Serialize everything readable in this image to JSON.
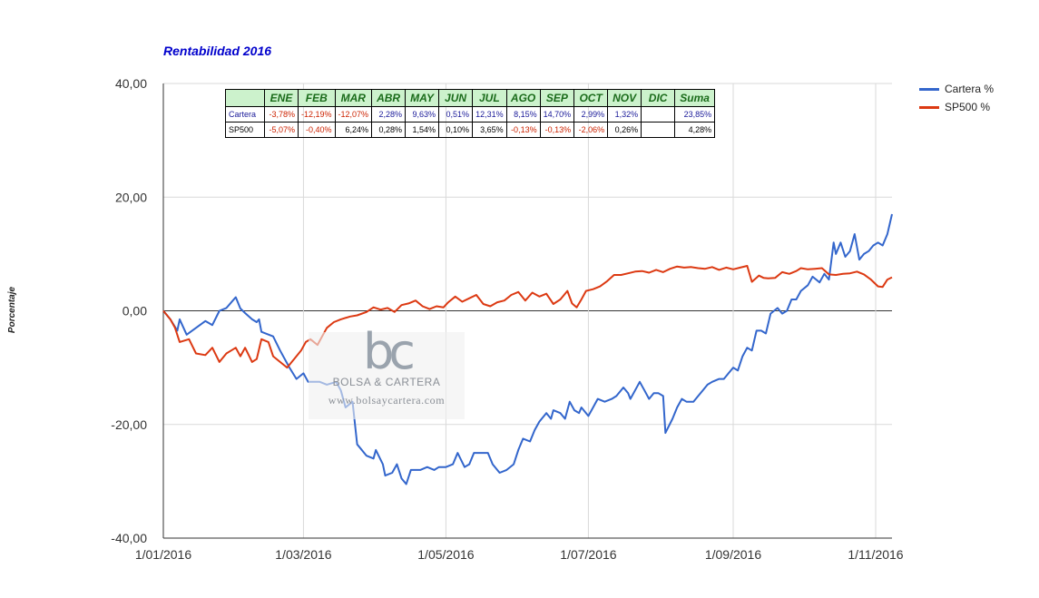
{
  "chart_data": {
    "type": "line",
    "title": "Rentabilidad 2016",
    "ylabel": "Porcentaje",
    "xlabel": "",
    "xlim": [
      "2016-01-01",
      "2016-11-08"
    ],
    "ylim": [
      -40,
      40
    ],
    "yticks": [
      -40,
      -20,
      0,
      20,
      40
    ],
    "ytick_labels": [
      "-40,00",
      "-20,00",
      "0,00",
      "20,00",
      "40,00"
    ],
    "xticks": [
      "2016-01-01",
      "2016-03-01",
      "2016-05-01",
      "2016-07-01",
      "2016-09-01",
      "2016-11-01"
    ],
    "xtick_labels": [
      "1/01/2016",
      "1/03/2016",
      "1/05/2016",
      "1/07/2016",
      "1/09/2016",
      "1/11/2016"
    ],
    "grid": true,
    "legend_position": "right",
    "series": [
      {
        "name": "Cartera %",
        "color": "#3366cc",
        "points": [
          [
            "2016-01-01",
            0
          ],
          [
            "2016-01-04",
            -1.5
          ],
          [
            "2016-01-07",
            -3.5
          ],
          [
            "2016-01-08",
            -1.5
          ],
          [
            "2016-01-11",
            -4.2
          ],
          [
            "2016-01-15",
            -3
          ],
          [
            "2016-01-19",
            -1.8
          ],
          [
            "2016-01-22",
            -2.5
          ],
          [
            "2016-01-25",
            0
          ],
          [
            "2016-01-28",
            0.5
          ],
          [
            "2016-02-01",
            2.4
          ],
          [
            "2016-02-03",
            0.4
          ],
          [
            "2016-02-05",
            -0.4
          ],
          [
            "2016-02-08",
            -1.5
          ],
          [
            "2016-02-10",
            -2
          ],
          [
            "2016-02-11",
            -1.5
          ],
          [
            "2016-02-12",
            -3.7
          ],
          [
            "2016-02-17",
            -4.5
          ],
          [
            "2016-02-20",
            -7
          ],
          [
            "2016-02-24",
            -10
          ],
          [
            "2016-02-27",
            -12
          ],
          [
            "2016-03-01",
            -11
          ],
          [
            "2016-03-03",
            -12.5
          ],
          [
            "2016-03-08",
            -12.5
          ],
          [
            "2016-03-11",
            -13
          ],
          [
            "2016-03-15",
            -12.5
          ],
          [
            "2016-03-17",
            -14
          ],
          [
            "2016-03-19",
            -17
          ],
          [
            "2016-03-22",
            -16
          ],
          [
            "2016-03-24",
            -23.5
          ],
          [
            "2016-03-25",
            -24
          ],
          [
            "2016-03-28",
            -25.5
          ],
          [
            "2016-03-31",
            -26
          ],
          [
            "2016-04-01",
            -24.5
          ],
          [
            "2016-04-04",
            -27
          ],
          [
            "2016-04-05",
            -29
          ],
          [
            "2016-04-08",
            -28.5
          ],
          [
            "2016-04-10",
            -27
          ],
          [
            "2016-04-12",
            -29.5
          ],
          [
            "2016-04-14",
            -30.5
          ],
          [
            "2016-04-16",
            -28
          ],
          [
            "2016-04-20",
            -28
          ],
          [
            "2016-04-23",
            -27.5
          ],
          [
            "2016-04-26",
            -28
          ],
          [
            "2016-04-28",
            -27.5
          ],
          [
            "2016-05-01",
            -27.5
          ],
          [
            "2016-05-04",
            -27
          ],
          [
            "2016-05-06",
            -25
          ],
          [
            "2016-05-09",
            -27.5
          ],
          [
            "2016-05-11",
            -27
          ],
          [
            "2016-05-13",
            -25
          ],
          [
            "2016-05-19",
            -25
          ],
          [
            "2016-05-21",
            -27
          ],
          [
            "2016-05-24",
            -28.5
          ],
          [
            "2016-05-27",
            -28
          ],
          [
            "2016-05-30",
            -27
          ],
          [
            "2016-06-01",
            -24.5
          ],
          [
            "2016-06-03",
            -22.5
          ],
          [
            "2016-06-06",
            -23
          ],
          [
            "2016-06-08",
            -21
          ],
          [
            "2016-06-10",
            -19.5
          ],
          [
            "2016-06-13",
            -18
          ],
          [
            "2016-06-15",
            -19
          ],
          [
            "2016-06-16",
            -17.5
          ],
          [
            "2016-06-19",
            -18
          ],
          [
            "2016-06-21",
            -19
          ],
          [
            "2016-06-23",
            -16
          ],
          [
            "2016-06-25",
            -17.5
          ],
          [
            "2016-06-27",
            -18
          ],
          [
            "2016-06-28",
            -17
          ],
          [
            "2016-07-01",
            -18.5
          ],
          [
            "2016-07-03",
            -17
          ],
          [
            "2016-07-05",
            -15.5
          ],
          [
            "2016-07-08",
            -16
          ],
          [
            "2016-07-11",
            -15.5
          ],
          [
            "2016-07-13",
            -15
          ],
          [
            "2016-07-16",
            -13.5
          ],
          [
            "2016-07-18",
            -14.5
          ],
          [
            "2016-07-19",
            -15.5
          ],
          [
            "2016-07-21",
            -14
          ],
          [
            "2016-07-23",
            -12.5
          ],
          [
            "2016-07-25",
            -14
          ],
          [
            "2016-07-27",
            -15.5
          ],
          [
            "2016-07-29",
            -14.5
          ],
          [
            "2016-07-31",
            -14.5
          ],
          [
            "2016-08-02",
            -15
          ],
          [
            "2016-08-03",
            -21.5
          ],
          [
            "2016-08-06",
            -19
          ],
          [
            "2016-08-08",
            -17
          ],
          [
            "2016-08-10",
            -15.5
          ],
          [
            "2016-08-12",
            -16
          ],
          [
            "2016-08-15",
            -16
          ],
          [
            "2016-08-17",
            -15
          ],
          [
            "2016-08-19",
            -14
          ],
          [
            "2016-08-21",
            -13
          ],
          [
            "2016-08-23",
            -12.5
          ],
          [
            "2016-08-26",
            -12
          ],
          [
            "2016-08-28",
            -12
          ],
          [
            "2016-08-30",
            -11
          ],
          [
            "2016-09-01",
            -10
          ],
          [
            "2016-09-03",
            -10.5
          ],
          [
            "2016-09-05",
            -8
          ],
          [
            "2016-09-07",
            -6.5
          ],
          [
            "2016-09-09",
            -7
          ],
          [
            "2016-09-11",
            -3.5
          ],
          [
            "2016-09-13",
            -3.5
          ],
          [
            "2016-09-15",
            -4
          ],
          [
            "2016-09-17",
            -0.5
          ],
          [
            "2016-09-20",
            0.5
          ],
          [
            "2016-09-22",
            -0.5
          ],
          [
            "2016-09-24",
            0
          ],
          [
            "2016-09-26",
            2
          ],
          [
            "2016-09-28",
            2
          ],
          [
            "2016-09-30",
            3.5
          ],
          [
            "2016-10-03",
            4.5
          ],
          [
            "2016-10-05",
            6
          ],
          [
            "2016-10-08",
            5
          ],
          [
            "2016-10-10",
            6.5
          ],
          [
            "2016-10-12",
            5.5
          ],
          [
            "2016-10-14",
            12
          ],
          [
            "2016-10-15",
            10
          ],
          [
            "2016-10-17",
            12
          ],
          [
            "2016-10-19",
            9.5
          ],
          [
            "2016-10-21",
            10.5
          ],
          [
            "2016-10-23",
            13.5
          ],
          [
            "2016-10-25",
            9
          ],
          [
            "2016-10-27",
            10
          ],
          [
            "2016-10-29",
            10.5
          ],
          [
            "2016-10-31",
            11.5
          ],
          [
            "2016-11-02",
            12
          ],
          [
            "2016-11-04",
            11.5
          ],
          [
            "2016-11-06",
            13.5
          ],
          [
            "2016-11-08",
            17
          ]
        ]
      },
      {
        "name": "SP500 %",
        "color": "#dc3912",
        "points": [
          [
            "2016-01-01",
            0
          ],
          [
            "2016-01-04",
            -1.5
          ],
          [
            "2016-01-06",
            -3
          ],
          [
            "2016-01-08",
            -5.5
          ],
          [
            "2016-01-12",
            -5
          ],
          [
            "2016-01-15",
            -7.5
          ],
          [
            "2016-01-19",
            -7.8
          ],
          [
            "2016-01-22",
            -6.5
          ],
          [
            "2016-01-25",
            -9
          ],
          [
            "2016-01-28",
            -7.5
          ],
          [
            "2016-02-01",
            -6.5
          ],
          [
            "2016-02-03",
            -8
          ],
          [
            "2016-02-05",
            -6.5
          ],
          [
            "2016-02-08",
            -9
          ],
          [
            "2016-02-10",
            -8.5
          ],
          [
            "2016-02-12",
            -5
          ],
          [
            "2016-02-15",
            -5.5
          ],
          [
            "2016-02-17",
            -8
          ],
          [
            "2016-02-20",
            -9
          ],
          [
            "2016-02-23",
            -10
          ],
          [
            "2016-02-26",
            -8.5
          ],
          [
            "2016-02-29",
            -7
          ],
          [
            "2016-03-02",
            -5.5
          ],
          [
            "2016-03-04",
            -5
          ],
          [
            "2016-03-07",
            -6
          ],
          [
            "2016-03-09",
            -4.5
          ],
          [
            "2016-03-11",
            -3
          ],
          [
            "2016-03-14",
            -2
          ],
          [
            "2016-03-17",
            -1.5
          ],
          [
            "2016-03-21",
            -1
          ],
          [
            "2016-03-24",
            -0.8
          ],
          [
            "2016-03-28",
            -0.2
          ],
          [
            "2016-03-31",
            0.6
          ],
          [
            "2016-04-03",
            0.2
          ],
          [
            "2016-04-06",
            0.5
          ],
          [
            "2016-04-09",
            -0.2
          ],
          [
            "2016-04-12",
            1
          ],
          [
            "2016-04-15",
            1.3
          ],
          [
            "2016-04-18",
            1.8
          ],
          [
            "2016-04-21",
            0.8
          ],
          [
            "2016-04-24",
            0.3
          ],
          [
            "2016-04-27",
            0.8
          ],
          [
            "2016-04-30",
            0.6
          ],
          [
            "2016-05-02",
            1.5
          ],
          [
            "2016-05-05",
            2.5
          ],
          [
            "2016-05-08",
            1.6
          ],
          [
            "2016-05-11",
            2.2
          ],
          [
            "2016-05-14",
            2.8
          ],
          [
            "2016-05-17",
            1.2
          ],
          [
            "2016-05-20",
            0.8
          ],
          [
            "2016-05-23",
            1.5
          ],
          [
            "2016-05-26",
            1.8
          ],
          [
            "2016-05-29",
            2.8
          ],
          [
            "2016-06-01",
            3.3
          ],
          [
            "2016-06-04",
            1.8
          ],
          [
            "2016-06-07",
            3.2
          ],
          [
            "2016-06-10",
            2.5
          ],
          [
            "2016-06-13",
            3
          ],
          [
            "2016-06-16",
            1.2
          ],
          [
            "2016-06-19",
            2
          ],
          [
            "2016-06-22",
            3.5
          ],
          [
            "2016-06-24",
            1.3
          ],
          [
            "2016-06-26",
            0.6
          ],
          [
            "2016-06-28",
            2
          ],
          [
            "2016-06-30",
            3.5
          ],
          [
            "2016-07-03",
            3.8
          ],
          [
            "2016-07-06",
            4.3
          ],
          [
            "2016-07-09",
            5.2
          ],
          [
            "2016-07-12",
            6.3
          ],
          [
            "2016-07-15",
            6.3
          ],
          [
            "2016-07-18",
            6.6
          ],
          [
            "2016-07-21",
            6.9
          ],
          [
            "2016-07-24",
            7
          ],
          [
            "2016-07-27",
            6.7
          ],
          [
            "2016-07-30",
            7.2
          ],
          [
            "2016-08-02",
            6.8
          ],
          [
            "2016-08-05",
            7.4
          ],
          [
            "2016-08-08",
            7.8
          ],
          [
            "2016-08-11",
            7.6
          ],
          [
            "2016-08-14",
            7.7
          ],
          [
            "2016-08-17",
            7.5
          ],
          [
            "2016-08-20",
            7.4
          ],
          [
            "2016-08-23",
            7.7
          ],
          [
            "2016-08-26",
            7.2
          ],
          [
            "2016-08-29",
            7.6
          ],
          [
            "2016-09-01",
            7.3
          ],
          [
            "2016-09-04",
            7.6
          ],
          [
            "2016-09-07",
            7.9
          ],
          [
            "2016-09-09",
            5.1
          ],
          [
            "2016-09-12",
            6.2
          ],
          [
            "2016-09-14",
            5.8
          ],
          [
            "2016-09-16",
            5.7
          ],
          [
            "2016-09-19",
            5.8
          ],
          [
            "2016-09-22",
            6.8
          ],
          [
            "2016-09-25",
            6.5
          ],
          [
            "2016-09-28",
            7
          ],
          [
            "2016-09-30",
            7.5
          ],
          [
            "2016-10-03",
            7.3
          ],
          [
            "2016-10-06",
            7.4
          ],
          [
            "2016-10-09",
            7.5
          ],
          [
            "2016-10-12",
            6.4
          ],
          [
            "2016-10-15",
            6.3
          ],
          [
            "2016-10-18",
            6.5
          ],
          [
            "2016-10-21",
            6.6
          ],
          [
            "2016-10-24",
            6.9
          ],
          [
            "2016-10-27",
            6.4
          ],
          [
            "2016-10-30",
            5.5
          ],
          [
            "2016-11-02",
            4.3
          ],
          [
            "2016-11-04",
            4.2
          ],
          [
            "2016-11-06",
            5.5
          ],
          [
            "2016-11-08",
            5.9
          ]
        ]
      }
    ],
    "monthly_table": {
      "headers": [
        "",
        "ENE",
        "FEB",
        "MAR",
        "ABR",
        "MAY",
        "JUN",
        "JUL",
        "AGO",
        "SEP",
        "OCT",
        "NOV",
        "DIC",
        "Suma"
      ],
      "rows": [
        {
          "label": "Cartera",
          "values": [
            "-3,78%",
            "-12,19%",
            "-12,07%",
            "2,28%",
            "9,63%",
            "0,51%",
            "12,31%",
            "8,15%",
            "14,70%",
            "2,99%",
            "1,32%",
            "",
            "23,85%"
          ]
        },
        {
          "label": "SP500",
          "values": [
            "-5,07%",
            "-0,40%",
            "6,24%",
            "0,28%",
            "1,54%",
            "0,10%",
            "3,65%",
            "-0,13%",
            "-0,13%",
            "-2,06%",
            "0,26%",
            "",
            "4,28%"
          ]
        }
      ]
    }
  },
  "watermark": {
    "logo": "bc",
    "name": "BOLSA & CARTERA",
    "url": "www.bolsaycartera.com"
  }
}
